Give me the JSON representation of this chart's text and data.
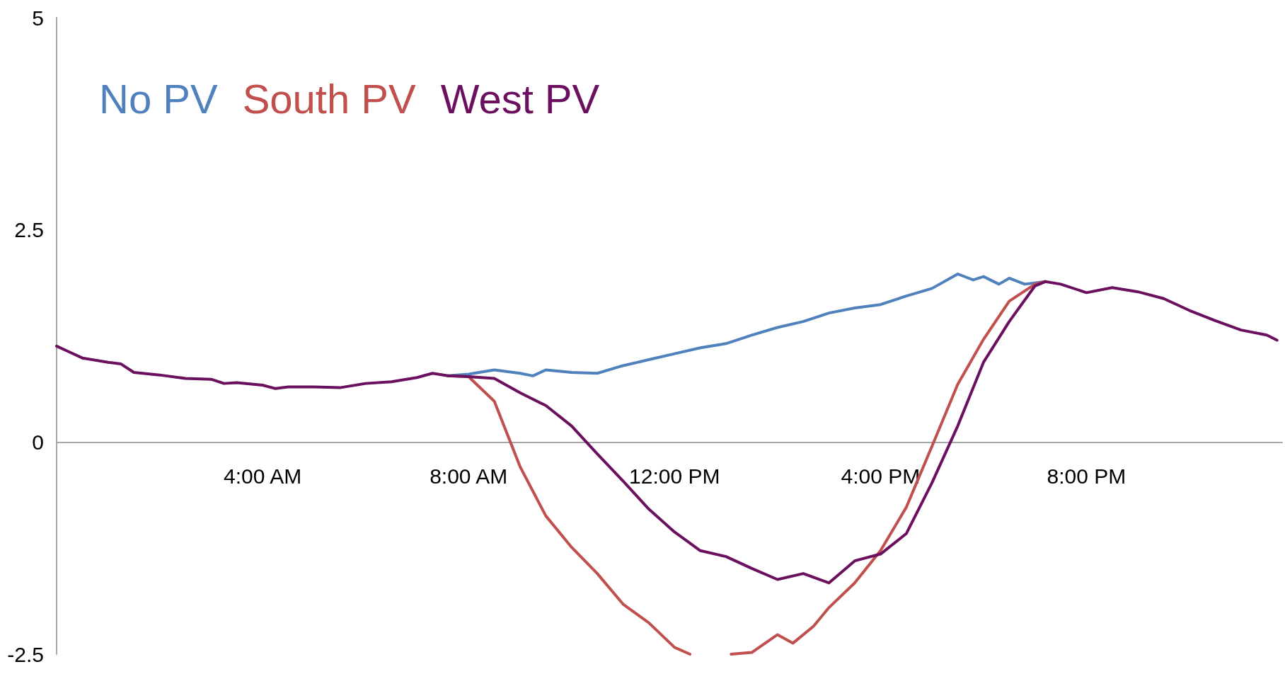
{
  "chart_data": {
    "type": "line",
    "legend": "top left",
    "marker": "none",
    "line_style": "solid",
    "grid": false,
    "xlim": [
      0,
      23.8
    ],
    "xticks": [
      {
        "value": 4,
        "label": "4:00 AM"
      },
      {
        "value": 8,
        "label": "8:00 AM"
      },
      {
        "value": 12,
        "label": "12:00 PM"
      },
      {
        "value": 16,
        "label": "4:00 PM"
      },
      {
        "value": 20,
        "label": "8:00 PM"
      }
    ],
    "ylim": [
      -2.5,
      5
    ],
    "yticks": [
      -2.5,
      0,
      2.5,
      5
    ],
    "series": [
      {
        "name": "No PV",
        "color": "#4f81bd",
        "x": [
          7.6,
          8,
          8.5,
          9,
          9.25,
          9.5,
          10,
          10.5,
          11,
          11.5,
          12,
          12.5,
          13,
          13.5,
          14,
          14.5,
          15,
          15.5,
          16,
          16.5,
          17,
          17.5,
          17.8,
          18,
          18.3,
          18.5,
          18.8,
          19.2
        ],
        "values": [
          0.78,
          0.8,
          0.85,
          0.81,
          0.78,
          0.85,
          0.82,
          0.81,
          0.9,
          0.97,
          1.04,
          1.11,
          1.16,
          1.26,
          1.35,
          1.42,
          1.52,
          1.58,
          1.62,
          1.72,
          1.81,
          1.98,
          1.91,
          1.95,
          1.86,
          1.93,
          1.86,
          1.89
        ]
      },
      {
        "name": "South PV",
        "color": "#c0504d",
        "x": [
          7.6,
          8,
          8.5,
          9,
          9.5,
          10,
          10.5,
          11,
          11.5,
          12,
          12.3,
          12.4,
          13.1,
          13.5,
          14,
          14.3,
          14.7,
          15,
          15.5,
          16,
          16.5,
          17,
          17.5,
          18,
          18.5,
          19,
          19.2
        ],
        "values": [
          0.78,
          0.77,
          0.48,
          -0.29,
          -0.87,
          -1.24,
          -1.55,
          -1.91,
          -2.13,
          -2.42,
          -2.5,
          null,
          -2.5,
          -2.48,
          -2.27,
          -2.37,
          -2.17,
          -1.95,
          -1.66,
          -1.28,
          -0.77,
          -0.05,
          0.68,
          1.21,
          1.66,
          1.86,
          1.89
        ]
      },
      {
        "name": "West PV",
        "color": "#6b0f5f",
        "x": [
          0,
          0.25,
          0.5,
          1,
          1.25,
          1.5,
          2,
          2.5,
          3,
          3.25,
          3.5,
          4,
          4.25,
          4.5,
          5,
          5.5,
          6,
          6.5,
          7,
          7.3,
          7.6,
          8,
          8.5,
          9,
          9.5,
          10,
          10.5,
          11,
          11.5,
          12,
          12.5,
          13,
          13.5,
          14,
          14.5,
          15,
          15.5,
          16,
          16.5,
          17,
          17.5,
          18,
          18.5,
          19,
          19.2,
          19.5,
          20,
          20.5,
          21,
          21.5,
          22,
          22.5,
          23,
          23.5,
          23.7
        ],
        "values": [
          1.13,
          1.06,
          0.99,
          0.94,
          0.92,
          0.82,
          0.79,
          0.75,
          0.74,
          0.69,
          0.7,
          0.67,
          0.63,
          0.65,
          0.65,
          0.64,
          0.69,
          0.71,
          0.76,
          0.81,
          0.78,
          0.77,
          0.75,
          0.58,
          0.43,
          0.19,
          -0.14,
          -0.46,
          -0.79,
          -1.06,
          -1.28,
          -1.35,
          -1.49,
          -1.62,
          -1.55,
          -1.66,
          -1.4,
          -1.32,
          -1.08,
          -0.48,
          0.19,
          0.94,
          1.42,
          1.84,
          1.89,
          1.86,
          1.76,
          1.82,
          1.77,
          1.69,
          1.55,
          1.43,
          1.32,
          1.26,
          1.2
        ]
      }
    ]
  }
}
